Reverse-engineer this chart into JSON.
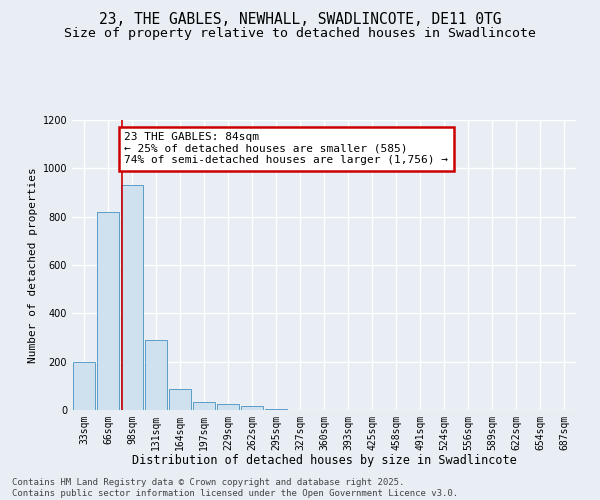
{
  "title": "23, THE GABLES, NEWHALL, SWADLINCOTE, DE11 0TG",
  "subtitle": "Size of property relative to detached houses in Swadlincote",
  "xlabel": "Distribution of detached houses by size in Swadlincote",
  "ylabel": "Number of detached properties",
  "categories": [
    "33sqm",
    "66sqm",
    "98sqm",
    "131sqm",
    "164sqm",
    "197sqm",
    "229sqm",
    "262sqm",
    "295sqm",
    "327sqm",
    "360sqm",
    "393sqm",
    "425sqm",
    "458sqm",
    "491sqm",
    "524sqm",
    "556sqm",
    "589sqm",
    "622sqm",
    "654sqm",
    "687sqm"
  ],
  "values": [
    198,
    820,
    930,
    290,
    85,
    35,
    25,
    15,
    5,
    2,
    0,
    0,
    0,
    0,
    0,
    0,
    0,
    0,
    0,
    0,
    0
  ],
  "bar_color": "#cfe0ef",
  "bar_edge_color": "#5b9dc9",
  "annotation_text": "23 THE GABLES: 84sqm\n← 25% of detached houses are smaller (585)\n74% of semi-detached houses are larger (1,756) →",
  "annotation_box_color": "white",
  "annotation_box_edge_color": "#cc0000",
  "vline_x_index": 1.58,
  "vline_color": "#cc0000",
  "ylim": [
    0,
    1200
  ],
  "yticks": [
    0,
    200,
    400,
    600,
    800,
    1000,
    1200
  ],
  "background_color": "#e8eef4",
  "plot_bg_color": "#e8eef4",
  "grid_color": "#ffffff",
  "footer_text": "Contains HM Land Registry data © Crown copyright and database right 2025.\nContains public sector information licensed under the Open Government Licence v3.0.",
  "title_fontsize": 10.5,
  "subtitle_fontsize": 9.5,
  "xlabel_fontsize": 8.5,
  "ylabel_fontsize": 8,
  "tick_fontsize": 7,
  "annotation_fontsize": 8,
  "footer_fontsize": 6.5
}
